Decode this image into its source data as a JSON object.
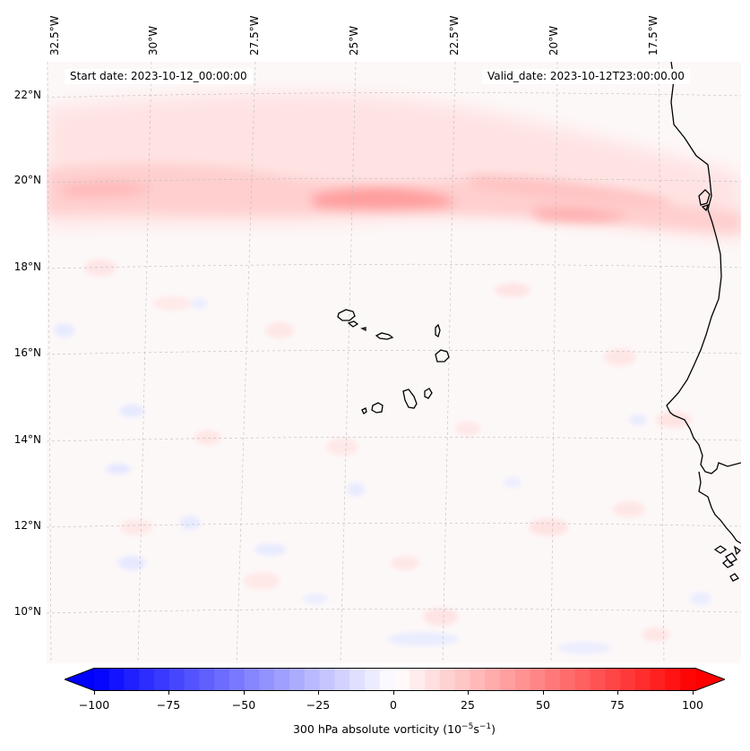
{
  "map": {
    "lon_labels": [
      "32.5°W",
      "30°W",
      "27.5°W",
      "25°W",
      "22.5°W",
      "20°W",
      "17.5°W"
    ],
    "lat_labels": [
      "22°N",
      "20°N",
      "18°N",
      "16°N",
      "14°N",
      "12°N",
      "10°N"
    ],
    "start_date": "Start date: 2023-10-12_00:00:00",
    "valid_date": "Valid_date: 2023-10-12T23:00:00.00",
    "extent": {
      "lon_min": -33.0,
      "lon_max": -15.5,
      "lat_min": 8.9,
      "lat_max": 22.8
    },
    "field": "300 hPa absolute vorticity",
    "colormap": "bwr",
    "colors": {
      "negative": "#0000ff",
      "neutral": "#ffffff",
      "positive": "#ff0000",
      "coast": "#000000",
      "grid": "#b0b0b0"
    }
  },
  "colorbar": {
    "ticks": [
      "−100",
      "−75",
      "−50",
      "−25",
      "0",
      "25",
      "50",
      "75",
      "100"
    ],
    "min": -100,
    "max": 100,
    "label_prefix": "300 hPa absolute vorticity (10",
    "label_exp1": "−5",
    "label_mid": "s",
    "label_exp2": "−1",
    "label_suffix": ")"
  }
}
